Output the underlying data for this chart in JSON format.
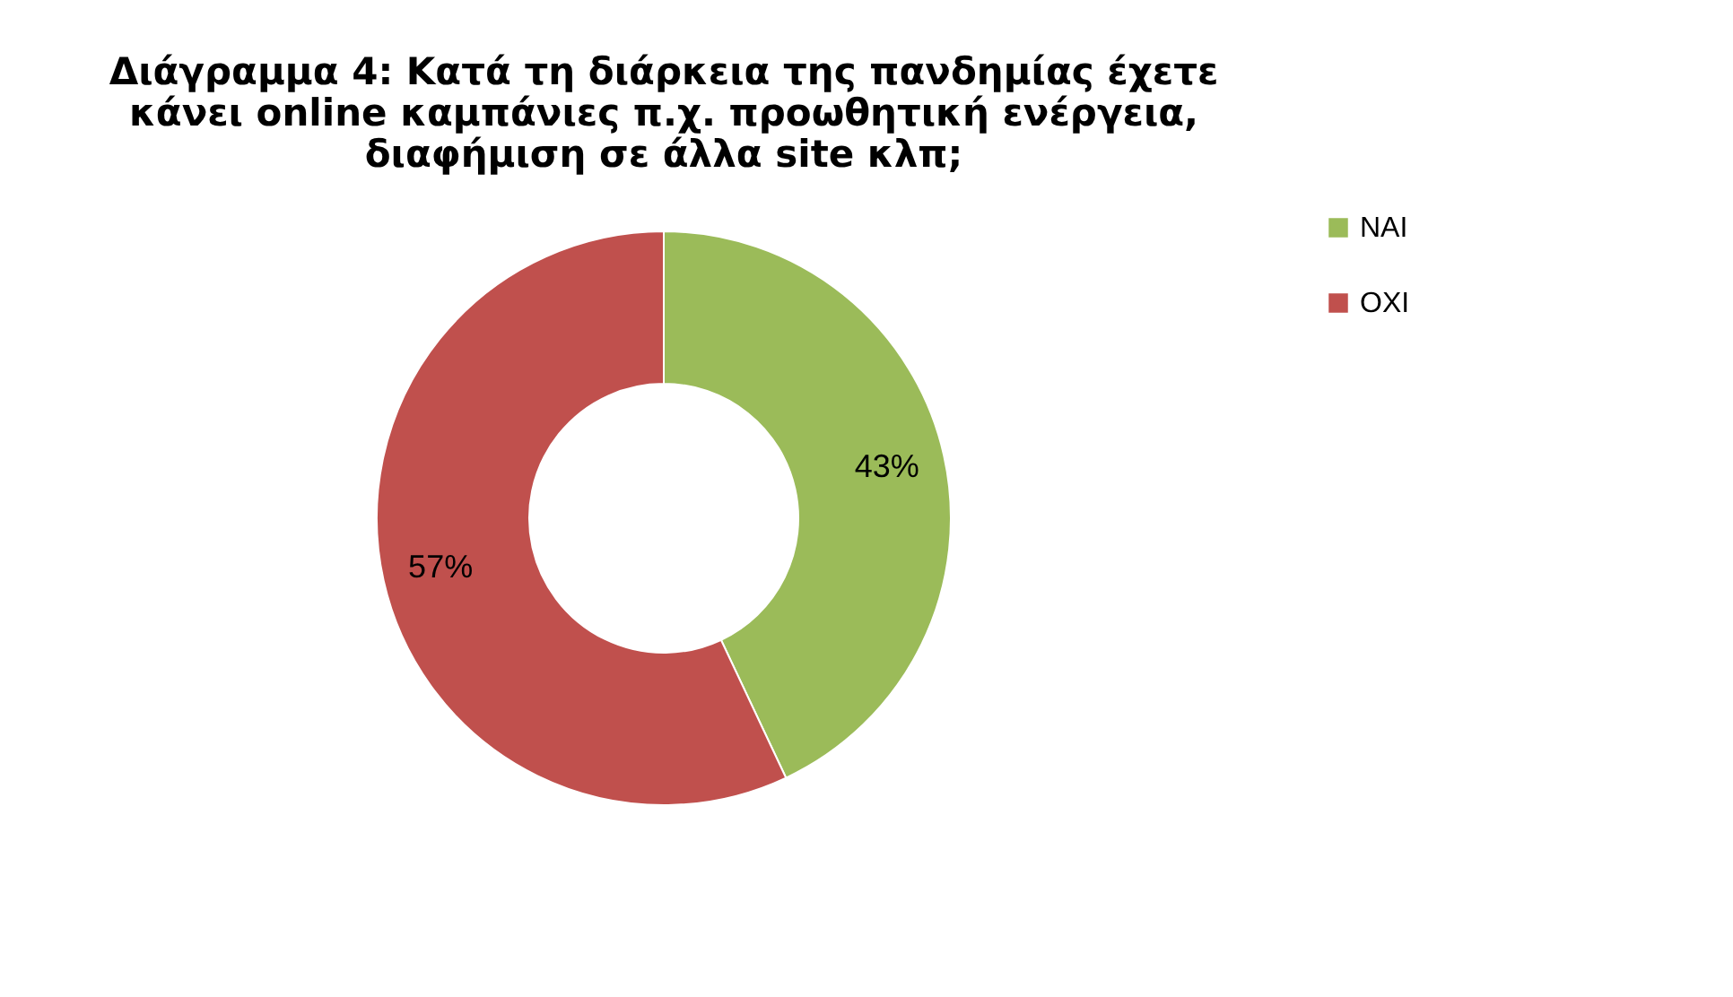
{
  "chart_data": {
    "type": "donut",
    "title": "Διάγραμμα 4: Κατά τη διάρκεια της πανδημίας έχετε κάνει online καμπάνιες π.χ. προωθητική ενέργεια, διαφήμιση σε άλλα site κλπ;",
    "categories": [
      "ΝΑΙ",
      "ΟΧΙ"
    ],
    "values": [
      43,
      57
    ],
    "colors": [
      "#9bbb59",
      "#c0504d"
    ],
    "value_labels": [
      "43%",
      "57%"
    ],
    "legend": "right"
  }
}
